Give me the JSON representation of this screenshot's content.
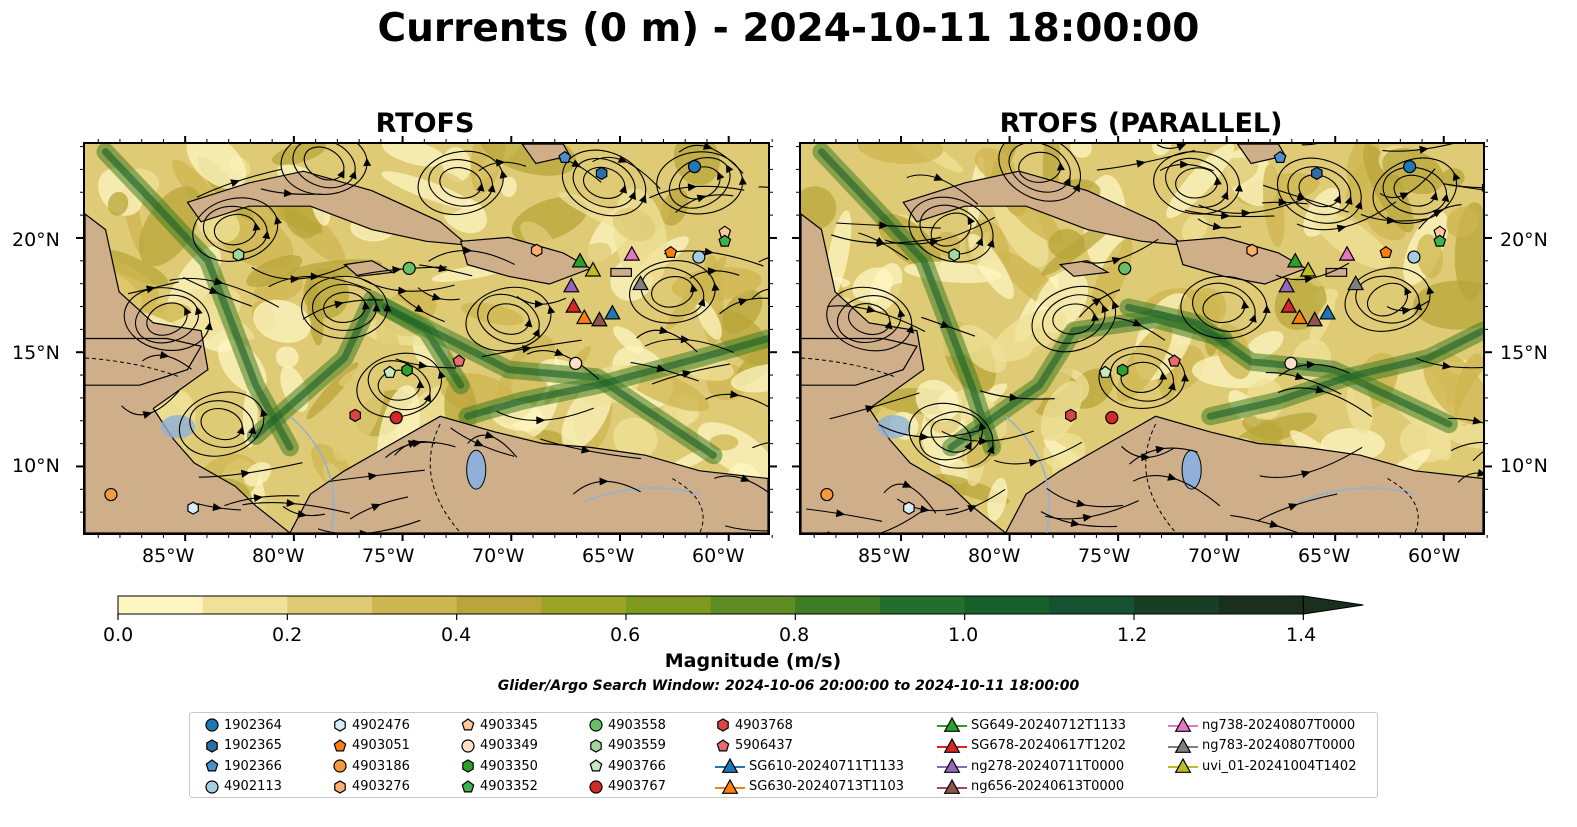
{
  "figure": {
    "title": "Currents (0 m) - 2024-10-11 18:00:00",
    "panels": [
      {
        "title": "RTOFS"
      },
      {
        "title": "RTOFS (PARALLEL)"
      }
    ],
    "lat_ticks": [
      "20°N",
      "15°N",
      "10°N"
    ],
    "lon_ticks": [
      "85°W",
      "80°W",
      "75°W",
      "70°W",
      "65°W",
      "60°W"
    ],
    "colors": {
      "land": "#cfae8a",
      "lake": "#8fb1d9",
      "streamline": "#000000"
    }
  },
  "colorbar": {
    "label": "Magnitude (m/s)",
    "ticks": [
      "0.0",
      "0.2",
      "0.4",
      "0.6",
      "0.8",
      "1.0",
      "1.2",
      "1.4"
    ],
    "colors": [
      "#fdf6c2",
      "#efe19a",
      "#dfcb75",
      "#cdb64f",
      "#b8a63a",
      "#9ba424",
      "#7e9a1e",
      "#5e8c23",
      "#3f7d25",
      "#236e2c",
      "#175f2b",
      "#165130",
      "#183f23",
      "#1a2f1d"
    ],
    "extend": "max"
  },
  "search_window": "Glider/Argo Search Window: 2024-10-06 20:00:00 to 2024-10-11 18:00:00",
  "legend": {
    "items": [
      {
        "label": "1902364",
        "marker": "circle",
        "color": "#1f77b4"
      },
      {
        "label": "1902365",
        "marker": "hexagon",
        "color": "#2b6faa"
      },
      {
        "label": "1902366",
        "marker": "pentagon",
        "color": "#4a90d0"
      },
      {
        "label": "4902113",
        "marker": "circle",
        "color": "#a6cee3"
      },
      {
        "label": "4902476",
        "marker": "hexagon",
        "color": "#d6ecf7"
      },
      {
        "label": "4903051",
        "marker": "pentagon",
        "color": "#ff7f0e"
      },
      {
        "label": "4903186",
        "marker": "circle",
        "color": "#f59a3c"
      },
      {
        "label": "4903276",
        "marker": "hexagon",
        "color": "#fdae6b"
      },
      {
        "label": "4903345",
        "marker": "pentagon",
        "color": "#fdc999"
      },
      {
        "label": "4903349",
        "marker": "circle",
        "color": "#fde0c5"
      },
      {
        "label": "4903350",
        "marker": "hexagon",
        "color": "#2ca02c"
      },
      {
        "label": "4903352",
        "marker": "pentagon",
        "color": "#3cb44b"
      },
      {
        "label": "4903558",
        "marker": "circle",
        "color": "#66c166"
      },
      {
        "label": "4903559",
        "marker": "hexagon",
        "color": "#a1d99b"
      },
      {
        "label": "4903766",
        "marker": "pentagon",
        "color": "#c7e9c0"
      },
      {
        "label": "4903767",
        "marker": "circle",
        "color": "#d62728"
      },
      {
        "label": "4903768",
        "marker": "hexagon",
        "color": "#d94545"
      },
      {
        "label": "5906437",
        "marker": "pentagon",
        "color": "#e86c6c"
      },
      {
        "label": "SG610-20240711T1133",
        "marker": "triangle-line",
        "color": "#1f77b4"
      },
      {
        "label": "SG630-20240713T1103",
        "marker": "triangle-line",
        "color": "#ff7f0e"
      },
      {
        "label": "SG649-20240712T1133",
        "marker": "triangle-line",
        "color": "#2ca02c"
      },
      {
        "label": "SG678-20240617T1202",
        "marker": "triangle-line",
        "color": "#d62728"
      },
      {
        "label": "ng278-20240711T0000",
        "marker": "triangle-line",
        "color": "#9467bd"
      },
      {
        "label": "ng656-20240613T0000",
        "marker": "triangle-line",
        "color": "#8c564b"
      },
      {
        "label": "ng738-20240807T0000",
        "marker": "triangle-line",
        "color": "#e377c2"
      },
      {
        "label": "ng783-20240807T0000",
        "marker": "triangle-line",
        "color": "#7f7f7f"
      },
      {
        "label": "uvi_01-20241004T1402",
        "marker": "triangle-line",
        "color": "#bcbd22"
      }
    ]
  },
  "map_markers": [
    {
      "id": "1902364",
      "marker": "circle",
      "color": "#1f77b4",
      "lon": -61.5,
      "lat": 23.2
    },
    {
      "id": "1902365",
      "marker": "hexagon",
      "color": "#2b6faa",
      "lon": -65.8,
      "lat": 22.9
    },
    {
      "id": "1902366",
      "marker": "pentagon",
      "color": "#4a90d0",
      "lon": -67.5,
      "lat": 23.6
    },
    {
      "id": "4902113",
      "marker": "circle",
      "color": "#a6cee3",
      "lon": -61.3,
      "lat": 19.2
    },
    {
      "id": "4902476",
      "marker": "hexagon",
      "color": "#d6ecf7",
      "lon": -84.7,
      "lat": 8.1
    },
    {
      "id": "4903051",
      "marker": "pentagon",
      "color": "#ff7f0e",
      "lon": -62.6,
      "lat": 19.4
    },
    {
      "id": "4903186",
      "marker": "circle",
      "color": "#f59a3c",
      "lon": -88.5,
      "lat": 8.7
    },
    {
      "id": "4903276",
      "marker": "hexagon",
      "color": "#fdae6b",
      "lon": -68.8,
      "lat": 19.5
    },
    {
      "id": "4903345",
      "marker": "pentagon",
      "color": "#fdc999",
      "lon": -60.1,
      "lat": 20.3
    },
    {
      "id": "4903349",
      "marker": "circle",
      "color": "#fde0c5",
      "lon": -67.0,
      "lat": 14.5
    },
    {
      "id": "4903350",
      "marker": "hexagon",
      "color": "#2ca02c",
      "lon": -74.8,
      "lat": 14.2
    },
    {
      "id": "4903352",
      "marker": "pentagon",
      "color": "#3cb44b",
      "lon": -60.1,
      "lat": 19.9
    },
    {
      "id": "4903558",
      "marker": "circle",
      "color": "#66c166",
      "lon": -74.7,
      "lat": 18.7
    },
    {
      "id": "4903559",
      "marker": "hexagon",
      "color": "#a1d99b",
      "lon": -82.6,
      "lat": 19.3
    },
    {
      "id": "4903766",
      "marker": "pentagon",
      "color": "#c7e9c0",
      "lon": -75.6,
      "lat": 14.1
    },
    {
      "id": "4903767",
      "marker": "circle",
      "color": "#d62728",
      "lon": -75.3,
      "lat": 12.1
    },
    {
      "id": "4903768",
      "marker": "hexagon",
      "color": "#d94545",
      "lon": -77.2,
      "lat": 12.2
    },
    {
      "id": "5906437",
      "marker": "pentagon",
      "color": "#e86c6c",
      "lon": -72.4,
      "lat": 14.6
    },
    {
      "id": "SG610-20240711T1133",
      "marker": "triangle",
      "color": "#1f77b4",
      "lon": -65.3,
      "lat": 16.7
    },
    {
      "id": "SG630-20240713T1103",
      "marker": "triangle",
      "color": "#ff7f0e",
      "lon": -66.6,
      "lat": 16.5
    },
    {
      "id": "SG649-20240712T1133",
      "marker": "triangle",
      "color": "#2ca02c",
      "lon": -66.8,
      "lat": 19.0
    },
    {
      "id": "SG678-20240617T1202",
      "marker": "triangle",
      "color": "#d62728",
      "lon": -67.1,
      "lat": 17.0
    },
    {
      "id": "ng278-20240711T0000",
      "marker": "triangle",
      "color": "#9467bd",
      "lon": -67.2,
      "lat": 17.9
    },
    {
      "id": "ng656-20240613T0000",
      "marker": "triangle",
      "color": "#8c564b",
      "lon": -65.9,
      "lat": 16.4
    },
    {
      "id": "ng738-20240807T0000",
      "marker": "triangle",
      "color": "#e377c2",
      "lon": -64.4,
      "lat": 19.3
    },
    {
      "id": "ng783-20240807T0000",
      "marker": "triangle",
      "color": "#7f7f7f",
      "lon": -64.0,
      "lat": 18.0
    },
    {
      "id": "uvi_01-20241004T1402",
      "marker": "triangle",
      "color": "#bcbd22",
      "lon": -66.2,
      "lat": 18.6
    }
  ]
}
